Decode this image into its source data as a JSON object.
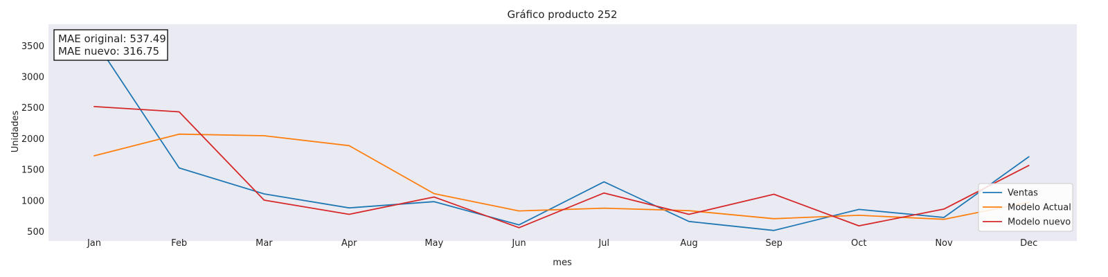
{
  "chart_data": {
    "type": "line",
    "title": "Gráfico producto 252",
    "xlabel": "mes",
    "ylabel": "Unidades",
    "categories": [
      "Jan",
      "Feb",
      "Mar",
      "Apr",
      "May",
      "Jun",
      "Jul",
      "Aug",
      "Sep",
      "Oct",
      "Nov",
      "Dec"
    ],
    "ylim": [
      350,
      3850
    ],
    "yticks": [
      500,
      1000,
      1500,
      2000,
      2500,
      3000,
      3500
    ],
    "grid": false,
    "legend_position": "lower-right",
    "background": "#eaeaf2",
    "annotation": {
      "lines": [
        "MAE original: 537.49",
        "MAE nuevo: 316.75"
      ]
    },
    "series": [
      {
        "name": "Ventas",
        "color": "#1f77b4",
        "values": [
          3600,
          1530,
          1110,
          885,
          985,
          610,
          1305,
          665,
          520,
          860,
          730,
          1710
        ]
      },
      {
        "name": "Modelo Actual",
        "color": "#ff7f0e",
        "values": [
          1725,
          2075,
          2050,
          1890,
          1115,
          835,
          880,
          840,
          710,
          765,
          700,
          975
        ]
      },
      {
        "name": "Modelo nuevo",
        "color": "#d62728",
        "values": [
          2520,
          2435,
          1010,
          780,
          1060,
          565,
          1125,
          780,
          1105,
          595,
          865,
          1570
        ]
      }
    ]
  }
}
